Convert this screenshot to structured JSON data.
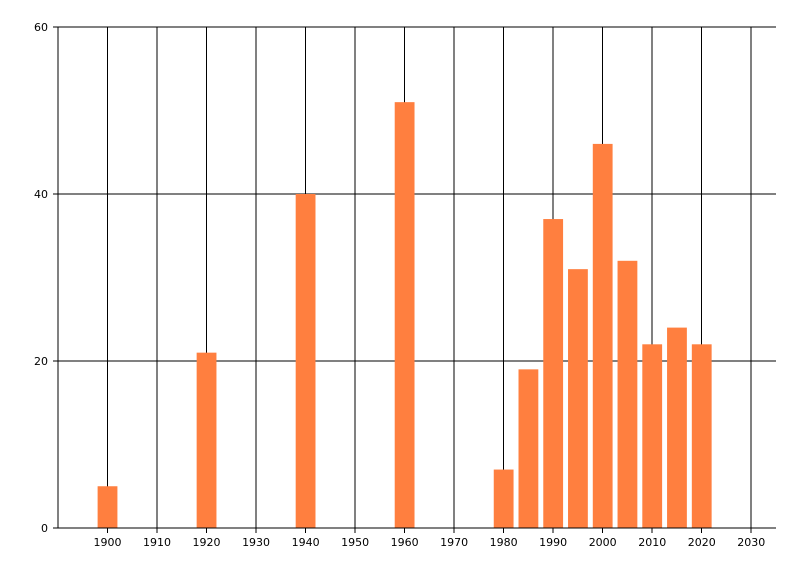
{
  "chart_data": {
    "type": "bar",
    "x": [
      1900,
      1920,
      1940,
      1960,
      1980,
      1985,
      1990,
      1995,
      2000,
      2005,
      2010,
      2015,
      2020
    ],
    "values": [
      5,
      21,
      40,
      51,
      7,
      19,
      37,
      31,
      46,
      32,
      22,
      24,
      22
    ],
    "xlim": [
      1890,
      2035
    ],
    "ylim": [
      0,
      60
    ],
    "x_ticks": [
      1900,
      1910,
      1920,
      1930,
      1940,
      1950,
      1960,
      1970,
      1980,
      1990,
      2000,
      2010,
      2020,
      2030
    ],
    "y_ticks": [
      0,
      20,
      40,
      60
    ],
    "bar_width_years": 4,
    "grid": true,
    "colors": {
      "bar": "#FF7F3F",
      "grid": "#000000",
      "axis": "#000000"
    }
  }
}
